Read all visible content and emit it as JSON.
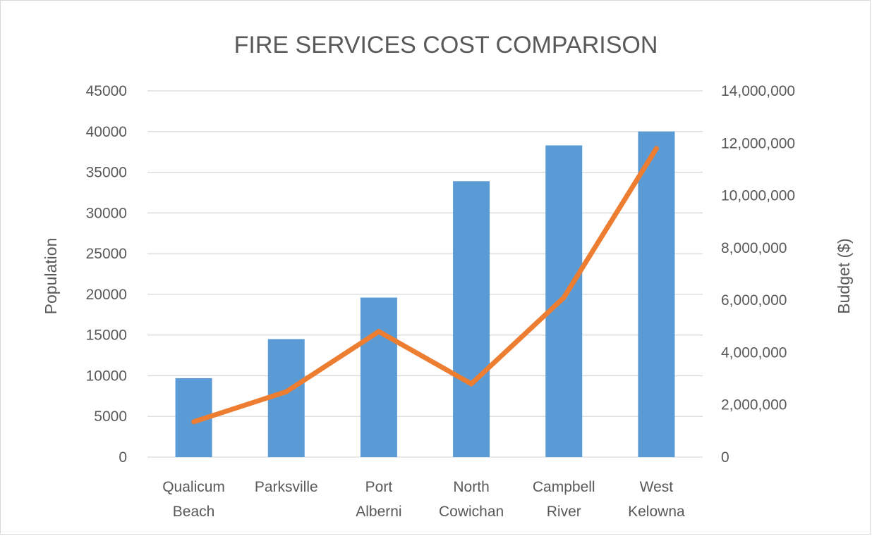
{
  "chart_data": {
    "type": "bar",
    "title": "FIRE SERVICES COST COMPARISON",
    "categories": [
      [
        "Qualicum",
        "Beach"
      ],
      [
        "Parksville"
      ],
      [
        "Port",
        "Alberni"
      ],
      [
        "North",
        "Cowichan"
      ],
      [
        "Campbell",
        "River"
      ],
      [
        "West",
        "Kelowna"
      ]
    ],
    "series": [
      {
        "type": "bar",
        "axis": "left",
        "color": "#5b9bd5",
        "values": [
          9700,
          14500,
          19600,
          33900,
          38300,
          40000
        ]
      },
      {
        "type": "line",
        "axis": "right",
        "color": "#ed7d31",
        "values": [
          1350000,
          2500000,
          4800000,
          2800000,
          6100000,
          11800000
        ]
      }
    ],
    "ylabel": "Population",
    "y2label": "Budget ($)",
    "ylim": [
      0,
      45000
    ],
    "y2lim": [
      0,
      14000000
    ],
    "yticks": [
      "0",
      "5000",
      "10000",
      "15000",
      "20000",
      "25000",
      "30000",
      "35000",
      "40000",
      "45000"
    ],
    "y2ticks": [
      "0",
      "2,000,000",
      "4,000,000",
      "6,000,000",
      "8,000,000",
      "10,000,000",
      "12,000,000",
      "14,000,000"
    ],
    "grid": true,
    "legend": "none",
    "gridColor": "#d9d9d9"
  }
}
